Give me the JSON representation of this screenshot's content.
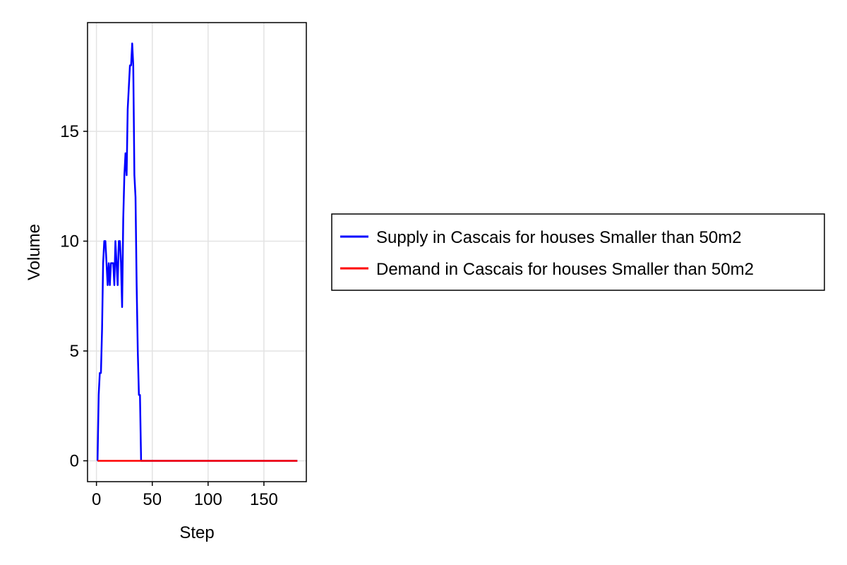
{
  "chart_data": {
    "type": "line",
    "xlabel": "Step",
    "ylabel": "Volume",
    "xlim": [
      -8,
      188
    ],
    "ylim": [
      -0.95,
      19.95
    ],
    "xticks": [
      0,
      50,
      100,
      150
    ],
    "xtick_labels": [
      "0",
      "50",
      "100",
      "150"
    ],
    "yticks": [
      0,
      5,
      10,
      15
    ],
    "ytick_labels": [
      "0",
      "5",
      "10",
      "15"
    ],
    "grid": true,
    "legend_position": "right",
    "series": [
      {
        "name": "Supply in Cascais for houses Smaller than 50m2",
        "color": "#0000ff",
        "x": [
          1,
          2,
          3,
          4,
          5,
          6,
          7,
          8,
          9,
          10,
          11,
          12,
          13,
          14,
          15,
          16,
          17,
          18,
          19,
          20,
          21,
          22,
          23,
          24,
          25,
          26,
          27,
          28,
          29,
          30,
          31,
          32,
          33,
          34,
          35,
          36,
          37,
          38,
          39,
          40,
          41,
          42,
          45,
          50,
          100,
          150,
          180
        ],
        "y": [
          0,
          3,
          4,
          4,
          6,
          9,
          10,
          10,
          9,
          8,
          9,
          8,
          9,
          9,
          9,
          8,
          10,
          9,
          8,
          10,
          10,
          9,
          7,
          11,
          13,
          14,
          13,
          16,
          17,
          18,
          18,
          19,
          18,
          13,
          12,
          8,
          5,
          3,
          3,
          0,
          0,
          0,
          0,
          0,
          0,
          0,
          0
        ]
      },
      {
        "name": "Demand in Cascais for houses Smaller than 50m2",
        "color": "#ff0000",
        "x": [
          1,
          180
        ],
        "y": [
          0,
          0
        ]
      }
    ]
  }
}
